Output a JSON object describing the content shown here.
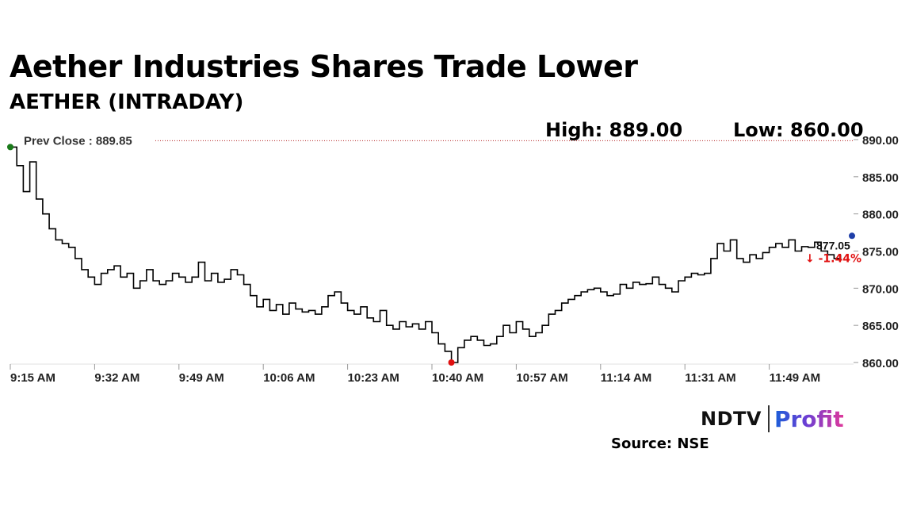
{
  "header": {
    "title": "Aether Industries Shares Trade Lower",
    "subtitle": "AETHER (INTRADAY)",
    "high": "High: 889.00",
    "low": "Low: 860.00"
  },
  "footer": {
    "brand_left": "NDTV",
    "brand_right": "Profit",
    "source": "Source: NSE"
  },
  "colors": {
    "line": "#000000",
    "prev_close_line": "#b22222",
    "open_marker": "#1a7a1a",
    "low_marker": "#e01010",
    "last_marker": "#1f3fa8",
    "change_negative": "#e01010"
  },
  "chart_data": {
    "type": "line",
    "title": "AETHER (INTRADAY)",
    "xlabel": "",
    "ylabel": "",
    "ylim": [
      860,
      890
    ],
    "y_ticks": [
      "890.00",
      "885.00",
      "880.00",
      "875.00",
      "870.00",
      "865.00",
      "860.00"
    ],
    "x_tick_labels": [
      "9:15 AM",
      "9:32 AM",
      "9:49 AM",
      "10:06 AM",
      "10:23 AM",
      "10:40 AM",
      "10:57 AM",
      "11:14 AM",
      "11:31 AM",
      "11:49 AM"
    ],
    "prev_close": 889.85,
    "prev_close_label": "Prev Close : 889.85",
    "last_price_label": "877.05",
    "change_label": "-1.44%",
    "change_arrow": "↓",
    "grid": false,
    "series": [
      {
        "values": [
          [
            0,
            889.0
          ],
          [
            1,
            886.5
          ],
          [
            2,
            883.0
          ],
          [
            3,
            887.0
          ],
          [
            4,
            882.0
          ],
          [
            5,
            880.0
          ],
          [
            6,
            878.0
          ],
          [
            7,
            876.5
          ],
          [
            8,
            876.0
          ],
          [
            9,
            875.5
          ],
          [
            10,
            874.0
          ],
          [
            11,
            872.5
          ],
          [
            12,
            871.5
          ],
          [
            13,
            870.5
          ],
          [
            14,
            872.0
          ],
          [
            15,
            872.5
          ],
          [
            16,
            873.0
          ],
          [
            17,
            871.5
          ],
          [
            18,
            872.0
          ],
          [
            19,
            870.0
          ],
          [
            20,
            871.0
          ],
          [
            21,
            872.5
          ],
          [
            22,
            871.0
          ],
          [
            23,
            870.5
          ],
          [
            24,
            871.0
          ],
          [
            25,
            872.0
          ],
          [
            26,
            871.5
          ],
          [
            27,
            870.8
          ],
          [
            28,
            871.5
          ],
          [
            29,
            873.5
          ],
          [
            30,
            871.0
          ],
          [
            31,
            872.0
          ],
          [
            32,
            870.8
          ],
          [
            33,
            871.2
          ],
          [
            34,
            872.5
          ],
          [
            35,
            871.8
          ],
          [
            36,
            870.5
          ],
          [
            37,
            869.0
          ],
          [
            38,
            867.5
          ],
          [
            39,
            868.5
          ],
          [
            40,
            867.0
          ],
          [
            41,
            867.8
          ],
          [
            42,
            866.5
          ],
          [
            43,
            868.0
          ],
          [
            44,
            867.2
          ],
          [
            45,
            866.8
          ],
          [
            46,
            867.0
          ],
          [
            47,
            866.5
          ],
          [
            48,
            867.5
          ],
          [
            49,
            869.0
          ],
          [
            50,
            869.5
          ],
          [
            51,
            868.0
          ],
          [
            52,
            867.0
          ],
          [
            53,
            866.5
          ],
          [
            54,
            867.5
          ],
          [
            55,
            866.0
          ],
          [
            56,
            865.5
          ],
          [
            57,
            867.0
          ],
          [
            58,
            865.0
          ],
          [
            59,
            864.5
          ],
          [
            60,
            865.5
          ],
          [
            61,
            864.8
          ],
          [
            62,
            865.2
          ],
          [
            63,
            864.5
          ],
          [
            64,
            865.5
          ],
          [
            65,
            864.0
          ],
          [
            66,
            862.5
          ],
          [
            67,
            861.5
          ],
          [
            68,
            860.0
          ],
          [
            69,
            862.0
          ],
          [
            70,
            863.0
          ],
          [
            71,
            863.5
          ],
          [
            72,
            863.0
          ],
          [
            73,
            862.3
          ],
          [
            74,
            862.5
          ],
          [
            75,
            863.5
          ],
          [
            76,
            865.0
          ],
          [
            77,
            864.0
          ],
          [
            78,
            865.5
          ],
          [
            79,
            864.5
          ],
          [
            80,
            863.5
          ],
          [
            81,
            864.0
          ],
          [
            82,
            865.0
          ],
          [
            83,
            866.5
          ],
          [
            84,
            867.0
          ],
          [
            85,
            868.0
          ],
          [
            86,
            868.5
          ],
          [
            87,
            869.0
          ],
          [
            88,
            869.5
          ],
          [
            89,
            869.8
          ],
          [
            90,
            870.0
          ],
          [
            91,
            869.5
          ],
          [
            92,
            869.0
          ],
          [
            93,
            869.2
          ],
          [
            94,
            870.5
          ],
          [
            95,
            870.0
          ],
          [
            96,
            870.8
          ],
          [
            97,
            870.5
          ],
          [
            98,
            870.6
          ],
          [
            99,
            871.5
          ],
          [
            100,
            870.5
          ],
          [
            101,
            870.0
          ],
          [
            102,
            869.5
          ],
          [
            103,
            871.0
          ],
          [
            104,
            871.5
          ],
          [
            105,
            872.0
          ],
          [
            106,
            871.8
          ],
          [
            107,
            872.0
          ],
          [
            108,
            874.0
          ],
          [
            109,
            876.0
          ],
          [
            110,
            875.0
          ],
          [
            111,
            876.5
          ],
          [
            112,
            874.0
          ],
          [
            113,
            873.5
          ],
          [
            114,
            874.5
          ],
          [
            115,
            874.0
          ],
          [
            116,
            874.8
          ],
          [
            117,
            875.5
          ],
          [
            118,
            876.0
          ],
          [
            119,
            875.5
          ],
          [
            120,
            876.5
          ],
          [
            121,
            875.0
          ],
          [
            122,
            875.6
          ],
          [
            123,
            875.5
          ],
          [
            124,
            876.2
          ],
          [
            125,
            875.0
          ],
          [
            126,
            874.5
          ],
          [
            127,
            874.0
          ],
          [
            128,
            874.5
          ],
          [
            130,
            877.05
          ]
        ]
      }
    ]
  }
}
